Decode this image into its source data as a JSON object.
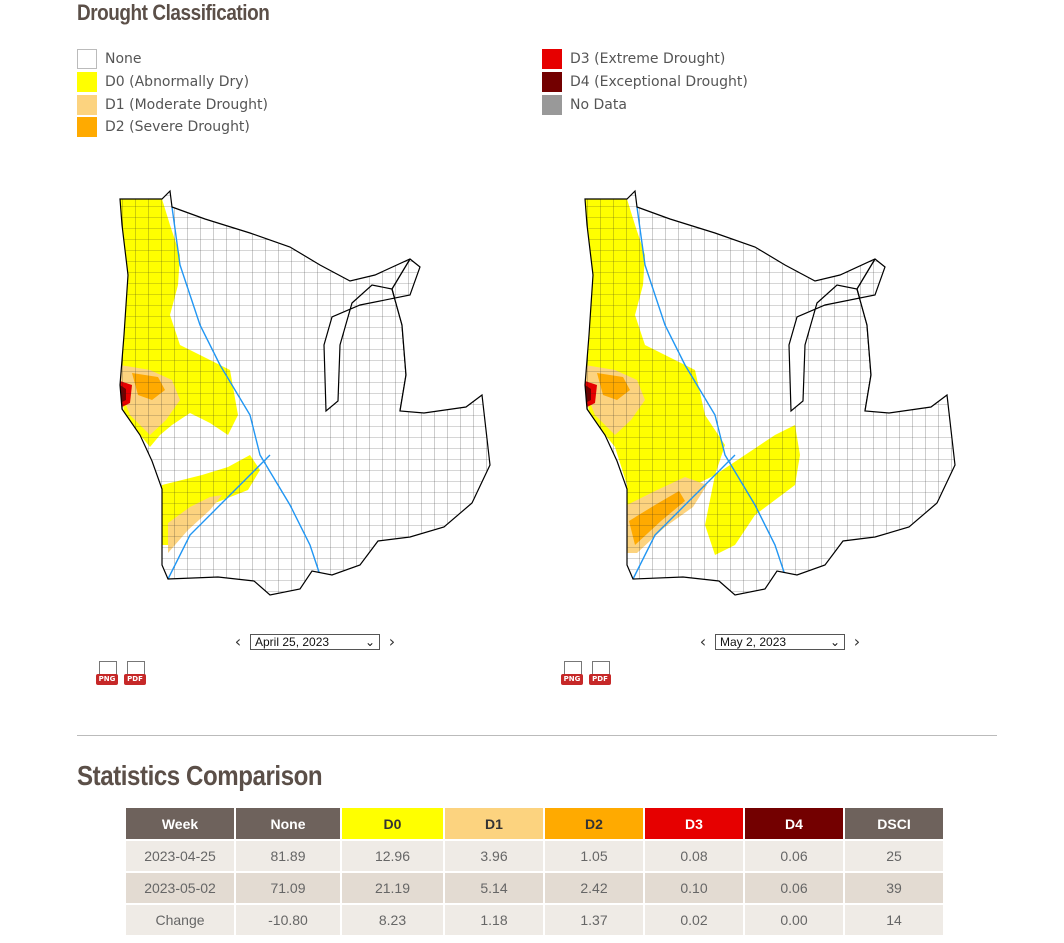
{
  "page": {
    "title": "Drought Classification",
    "stats_title": "Statistics Comparison"
  },
  "legend": {
    "left": [
      {
        "label": "None",
        "color": "#ffffff"
      },
      {
        "label": "D0 (Abnormally Dry)",
        "color": "#ffff00"
      },
      {
        "label": "D1 (Moderate Drought)",
        "color": "#fcd37f"
      },
      {
        "label": "D2 (Severe Drought)",
        "color": "#ffaa00"
      }
    ],
    "right": [
      {
        "label": "D3 (Extreme Drought)",
        "color": "#e60000"
      },
      {
        "label": "D4 (Exceptional Drought)",
        "color": "#730000"
      },
      {
        "label": "No Data",
        "color": "#999999"
      }
    ]
  },
  "maps": [
    {
      "date": "April 25, 2023",
      "png_label": "PNG",
      "pdf_label": "PDF"
    },
    {
      "date": "May 2, 2023",
      "png_label": "PNG",
      "pdf_label": "PDF"
    }
  ],
  "table": {
    "headers": [
      {
        "label": "Week",
        "bg": "#6e625c",
        "fg": "#ffffff"
      },
      {
        "label": "None",
        "bg": "#6e625c",
        "fg": "#ffffff"
      },
      {
        "label": "D0",
        "bg": "#ffff00",
        "fg": "#333333"
      },
      {
        "label": "D1",
        "bg": "#fcd37f",
        "fg": "#333333"
      },
      {
        "label": "D2",
        "bg": "#ffaa00",
        "fg": "#333333"
      },
      {
        "label": "D3",
        "bg": "#e60000",
        "fg": "#ffffff"
      },
      {
        "label": "D4",
        "bg": "#730000",
        "fg": "#ffffff"
      },
      {
        "label": "DSCI",
        "bg": "#6e625c",
        "fg": "#ffffff"
      }
    ],
    "rows": [
      [
        "2023-04-25",
        "81.89",
        "12.96",
        "3.96",
        "1.05",
        "0.08",
        "0.06",
        "25"
      ],
      [
        "2023-05-02",
        "71.09",
        "21.19",
        "5.14",
        "2.42",
        "0.10",
        "0.06",
        "39"
      ],
      [
        "Change",
        "-10.80",
        "8.23",
        "1.18",
        "1.37",
        "0.02",
        "0.00",
        "14"
      ]
    ]
  }
}
